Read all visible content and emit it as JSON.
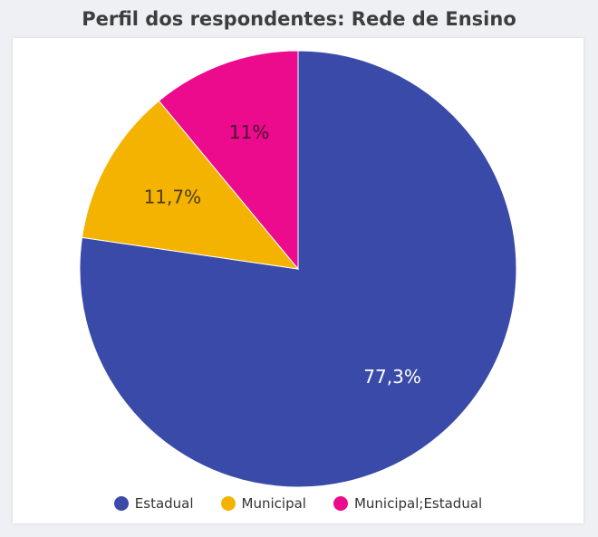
{
  "chart_data": {
    "type": "pie",
    "title": "Perfil dos respondentes: Rede de Ensino",
    "categories": [
      "Estadual",
      "Municipal",
      "Municipal;Estadual"
    ],
    "values": [
      77.3,
      11.7,
      11.0
    ],
    "data_labels": [
      "77,3%",
      "11,7%",
      "11%"
    ],
    "colors": [
      "#3a4aa8",
      "#f5b301",
      "#ec0a8d"
    ],
    "label_colors": [
      "#ffffff",
      "#4a3c10",
      "#4a1030"
    ],
    "legend_position": "bottom"
  }
}
